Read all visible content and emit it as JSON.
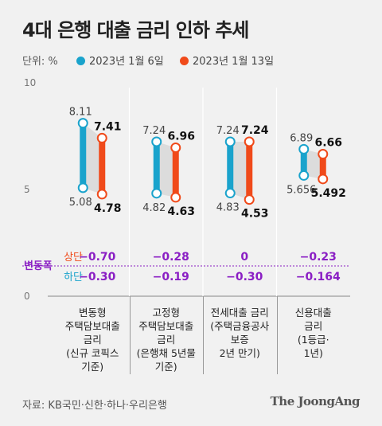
{
  "title": "4대 은행 대출 금리 인하 추세",
  "unit_label": "단위: %",
  "source": "자료: KB국민·신한·하나·우리은행",
  "logo_text": "The JoongAng",
  "colors": {
    "series1": "#1aa3cc",
    "series2": "#f04a1a",
    "change": "#8a1ec4",
    "range": "#dcdcdc"
  },
  "chart_data": {
    "type": "dumbbell",
    "ylim": [
      0,
      10
    ],
    "yticks": [
      "10",
      "5",
      "0"
    ],
    "legend": [
      "2023년 1월 6일",
      "2023년 1월 13일"
    ],
    "change_header": "변동폭",
    "change_rows": [
      "상단",
      "하단"
    ],
    "categories": [
      {
        "label": "변동형\n주택담보대출\n금리\n(신규 코픽스\n기준)",
        "jan6": {
          "high": 8.11,
          "low": 5.08,
          "high_label": "8.11",
          "low_label": "5.08"
        },
        "jan13": {
          "high": 7.41,
          "low": 4.78,
          "high_label": "7.41",
          "low_label": "4.78"
        },
        "change_high": "−0.70",
        "change_low": "−0.30"
      },
      {
        "label": "고정형\n주택담보대출\n금리\n(은행채 5년물\n기준)",
        "jan6": {
          "high": 7.24,
          "low": 4.82,
          "high_label": "7.24",
          "low_label": "4.82"
        },
        "jan13": {
          "high": 6.96,
          "low": 4.63,
          "high_label": "6.96",
          "low_label": "4.63"
        },
        "change_high": "−0.28",
        "change_low": "−0.19"
      },
      {
        "label": "전세대출 금리\n(주택금융공사\n보증\n2년 만기)",
        "jan6": {
          "high": 7.24,
          "low": 4.83,
          "high_label": "7.24",
          "low_label": "4.83"
        },
        "jan13": {
          "high": 7.24,
          "low": 4.53,
          "high_label": "7.24",
          "low_label": "4.53"
        },
        "change_high": "0",
        "change_low": "−0.30"
      },
      {
        "label": "신용대출\n금리\n(1등급·\n1년)",
        "jan6": {
          "high": 6.89,
          "low": 5.656,
          "high_label": "6.89",
          "low_label": "5.656"
        },
        "jan13": {
          "high": 6.66,
          "low": 5.492,
          "high_label": "6.66",
          "low_label": "5.492"
        },
        "change_high": "−0.23",
        "change_low": "−0.164"
      }
    ]
  }
}
